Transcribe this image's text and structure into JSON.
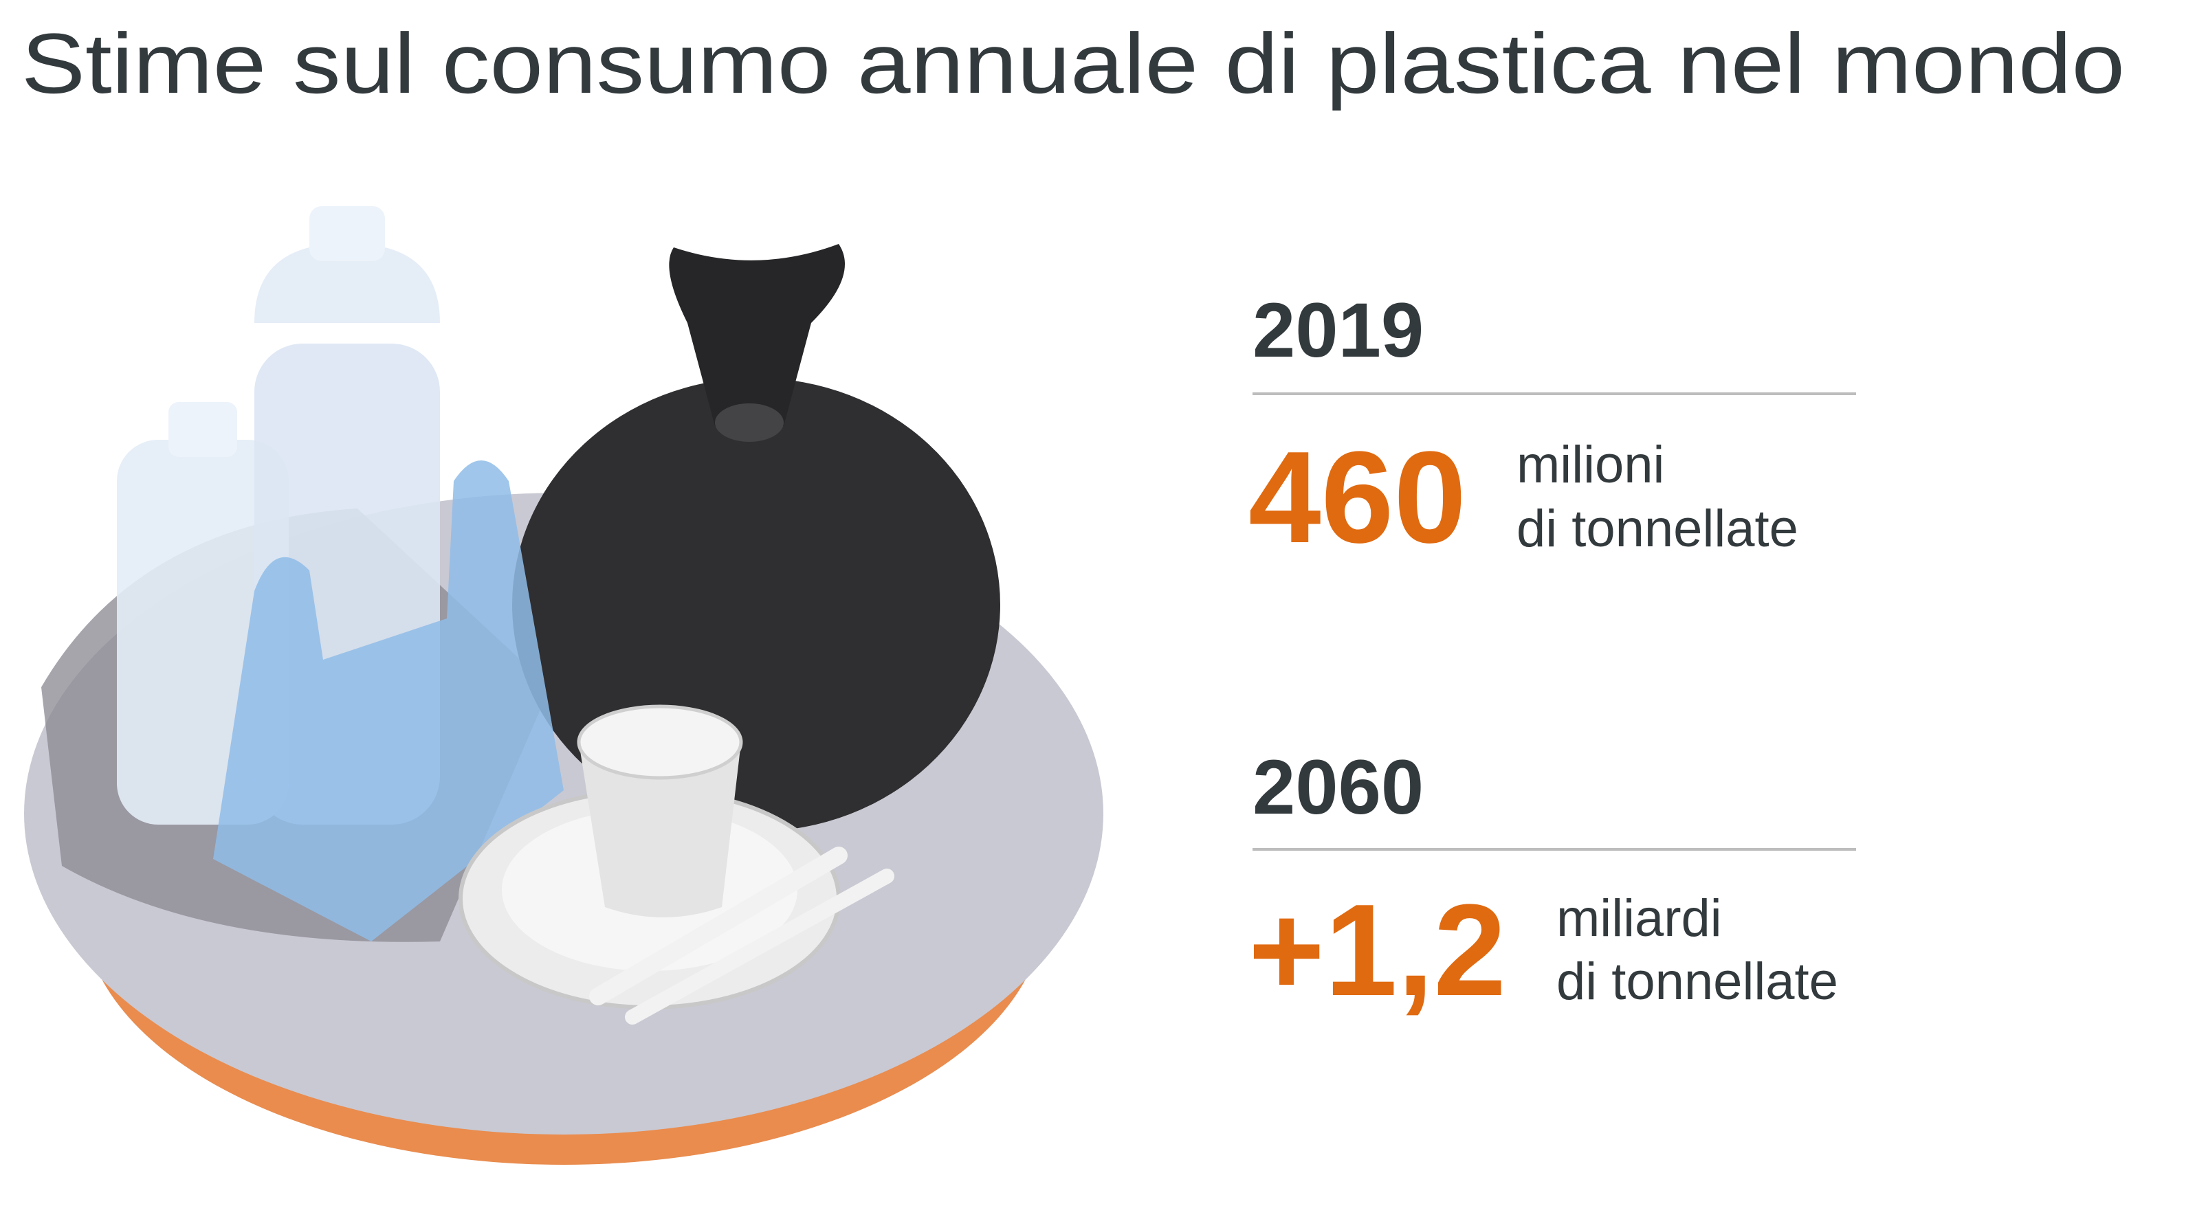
{
  "title": "Stime sul consumo annuale di plastica nel mondo",
  "stats": [
    {
      "year": "2019",
      "value": "460",
      "unit": [
        "milioni",
        "di tonnellate"
      ]
    },
    {
      "year": "2060",
      "value": "+1,2",
      "unit": [
        "miliardi",
        "di tonnellate"
      ]
    }
  ]
}
